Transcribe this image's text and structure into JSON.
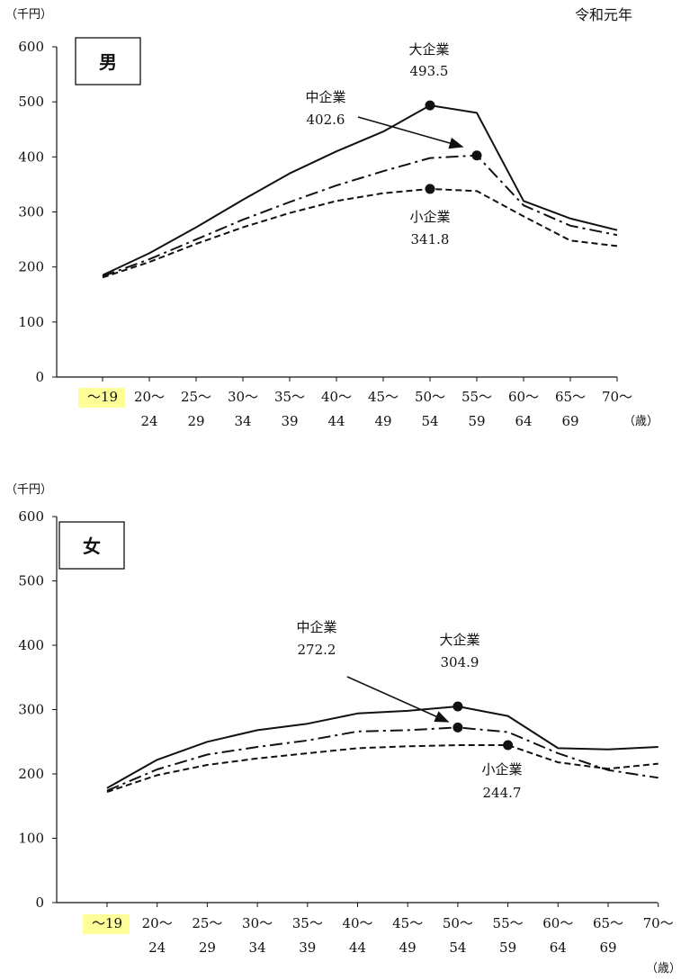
{
  "era_label": "令和元年",
  "chart_data": [
    {
      "type": "line",
      "panel_label": "男",
      "y_unit": "（千円）",
      "x_unit": "（歳）",
      "ylim": [
        0,
        600
      ],
      "yticks": [
        0,
        100,
        200,
        300,
        400,
        500,
        600
      ],
      "categories": [
        {
          "top": "～19",
          "bottom": ""
        },
        {
          "top": "20～",
          "bottom": "24"
        },
        {
          "top": "25～",
          "bottom": "29"
        },
        {
          "top": "30～",
          "bottom": "34"
        },
        {
          "top": "35～",
          "bottom": "39"
        },
        {
          "top": "40～",
          "bottom": "44"
        },
        {
          "top": "45～",
          "bottom": "49"
        },
        {
          "top": "50～",
          "bottom": "54"
        },
        {
          "top": "55～",
          "bottom": "59"
        },
        {
          "top": "60～",
          "bottom": "64"
        },
        {
          "top": "65～",
          "bottom": "69"
        },
        {
          "top": "70～",
          "bottom": ""
        }
      ],
      "highlight_category": 0,
      "highlight_color": "#ffff99",
      "series": [
        {
          "name": "大企業",
          "style": "solid",
          "values": [
            185,
            225,
            272,
            322,
            370,
            410,
            446,
            493.5,
            480,
            320,
            288,
            267
          ],
          "peak_index": 7,
          "peak_label": "493.5"
        },
        {
          "name": "中企業",
          "style": "dashdot",
          "values": [
            183,
            214,
            250,
            286,
            318,
            348,
            374,
            398,
            402.6,
            312,
            275,
            258
          ],
          "peak_index": 8,
          "peak_label": "402.6"
        },
        {
          "name": "小企業",
          "style": "dashed",
          "values": [
            181,
            209,
            242,
            272,
            298,
            320,
            334,
            341.8,
            338,
            292,
            248,
            238
          ],
          "peak_index": 7,
          "peak_label": "341.8"
        }
      ]
    },
    {
      "type": "line",
      "panel_label": "女",
      "y_unit": "（千円）",
      "x_unit": "（歳）",
      "ylim": [
        0,
        600
      ],
      "yticks": [
        0,
        100,
        200,
        300,
        400,
        500,
        600
      ],
      "categories": [
        {
          "top": "～19",
          "bottom": ""
        },
        {
          "top": "20～",
          "bottom": "24"
        },
        {
          "top": "25～",
          "bottom": "29"
        },
        {
          "top": "30～",
          "bottom": "34"
        },
        {
          "top": "35～",
          "bottom": "39"
        },
        {
          "top": "40～",
          "bottom": "44"
        },
        {
          "top": "45～",
          "bottom": "49"
        },
        {
          "top": "50～",
          "bottom": "54"
        },
        {
          "top": "55～",
          "bottom": "59"
        },
        {
          "top": "60～",
          "bottom": "64"
        },
        {
          "top": "65～",
          "bottom": "69"
        },
        {
          "top": "70～",
          "bottom": ""
        }
      ],
      "highlight_category": 0,
      "highlight_color": "#ffff99",
      "series": [
        {
          "name": "大企業",
          "style": "solid",
          "values": [
            178,
            222,
            250,
            268,
            278,
            294,
            298,
            304.9,
            290,
            240,
            238,
            242
          ],
          "peak_index": 7,
          "peak_label": "304.9"
        },
        {
          "name": "中企業",
          "style": "dashdot",
          "values": [
            174,
            207,
            230,
            242,
            252,
            266,
            268,
            272.2,
            265,
            232,
            206,
            194
          ],
          "peak_index": 7,
          "peak_label": "272.2"
        },
        {
          "name": "小企業",
          "style": "dashed",
          "values": [
            172,
            198,
            214,
            224,
            232,
            240,
            243,
            244.7,
            244.7,
            218,
            208,
            216
          ],
          "peak_index": 8,
          "peak_label": "244.7"
        }
      ]
    }
  ]
}
